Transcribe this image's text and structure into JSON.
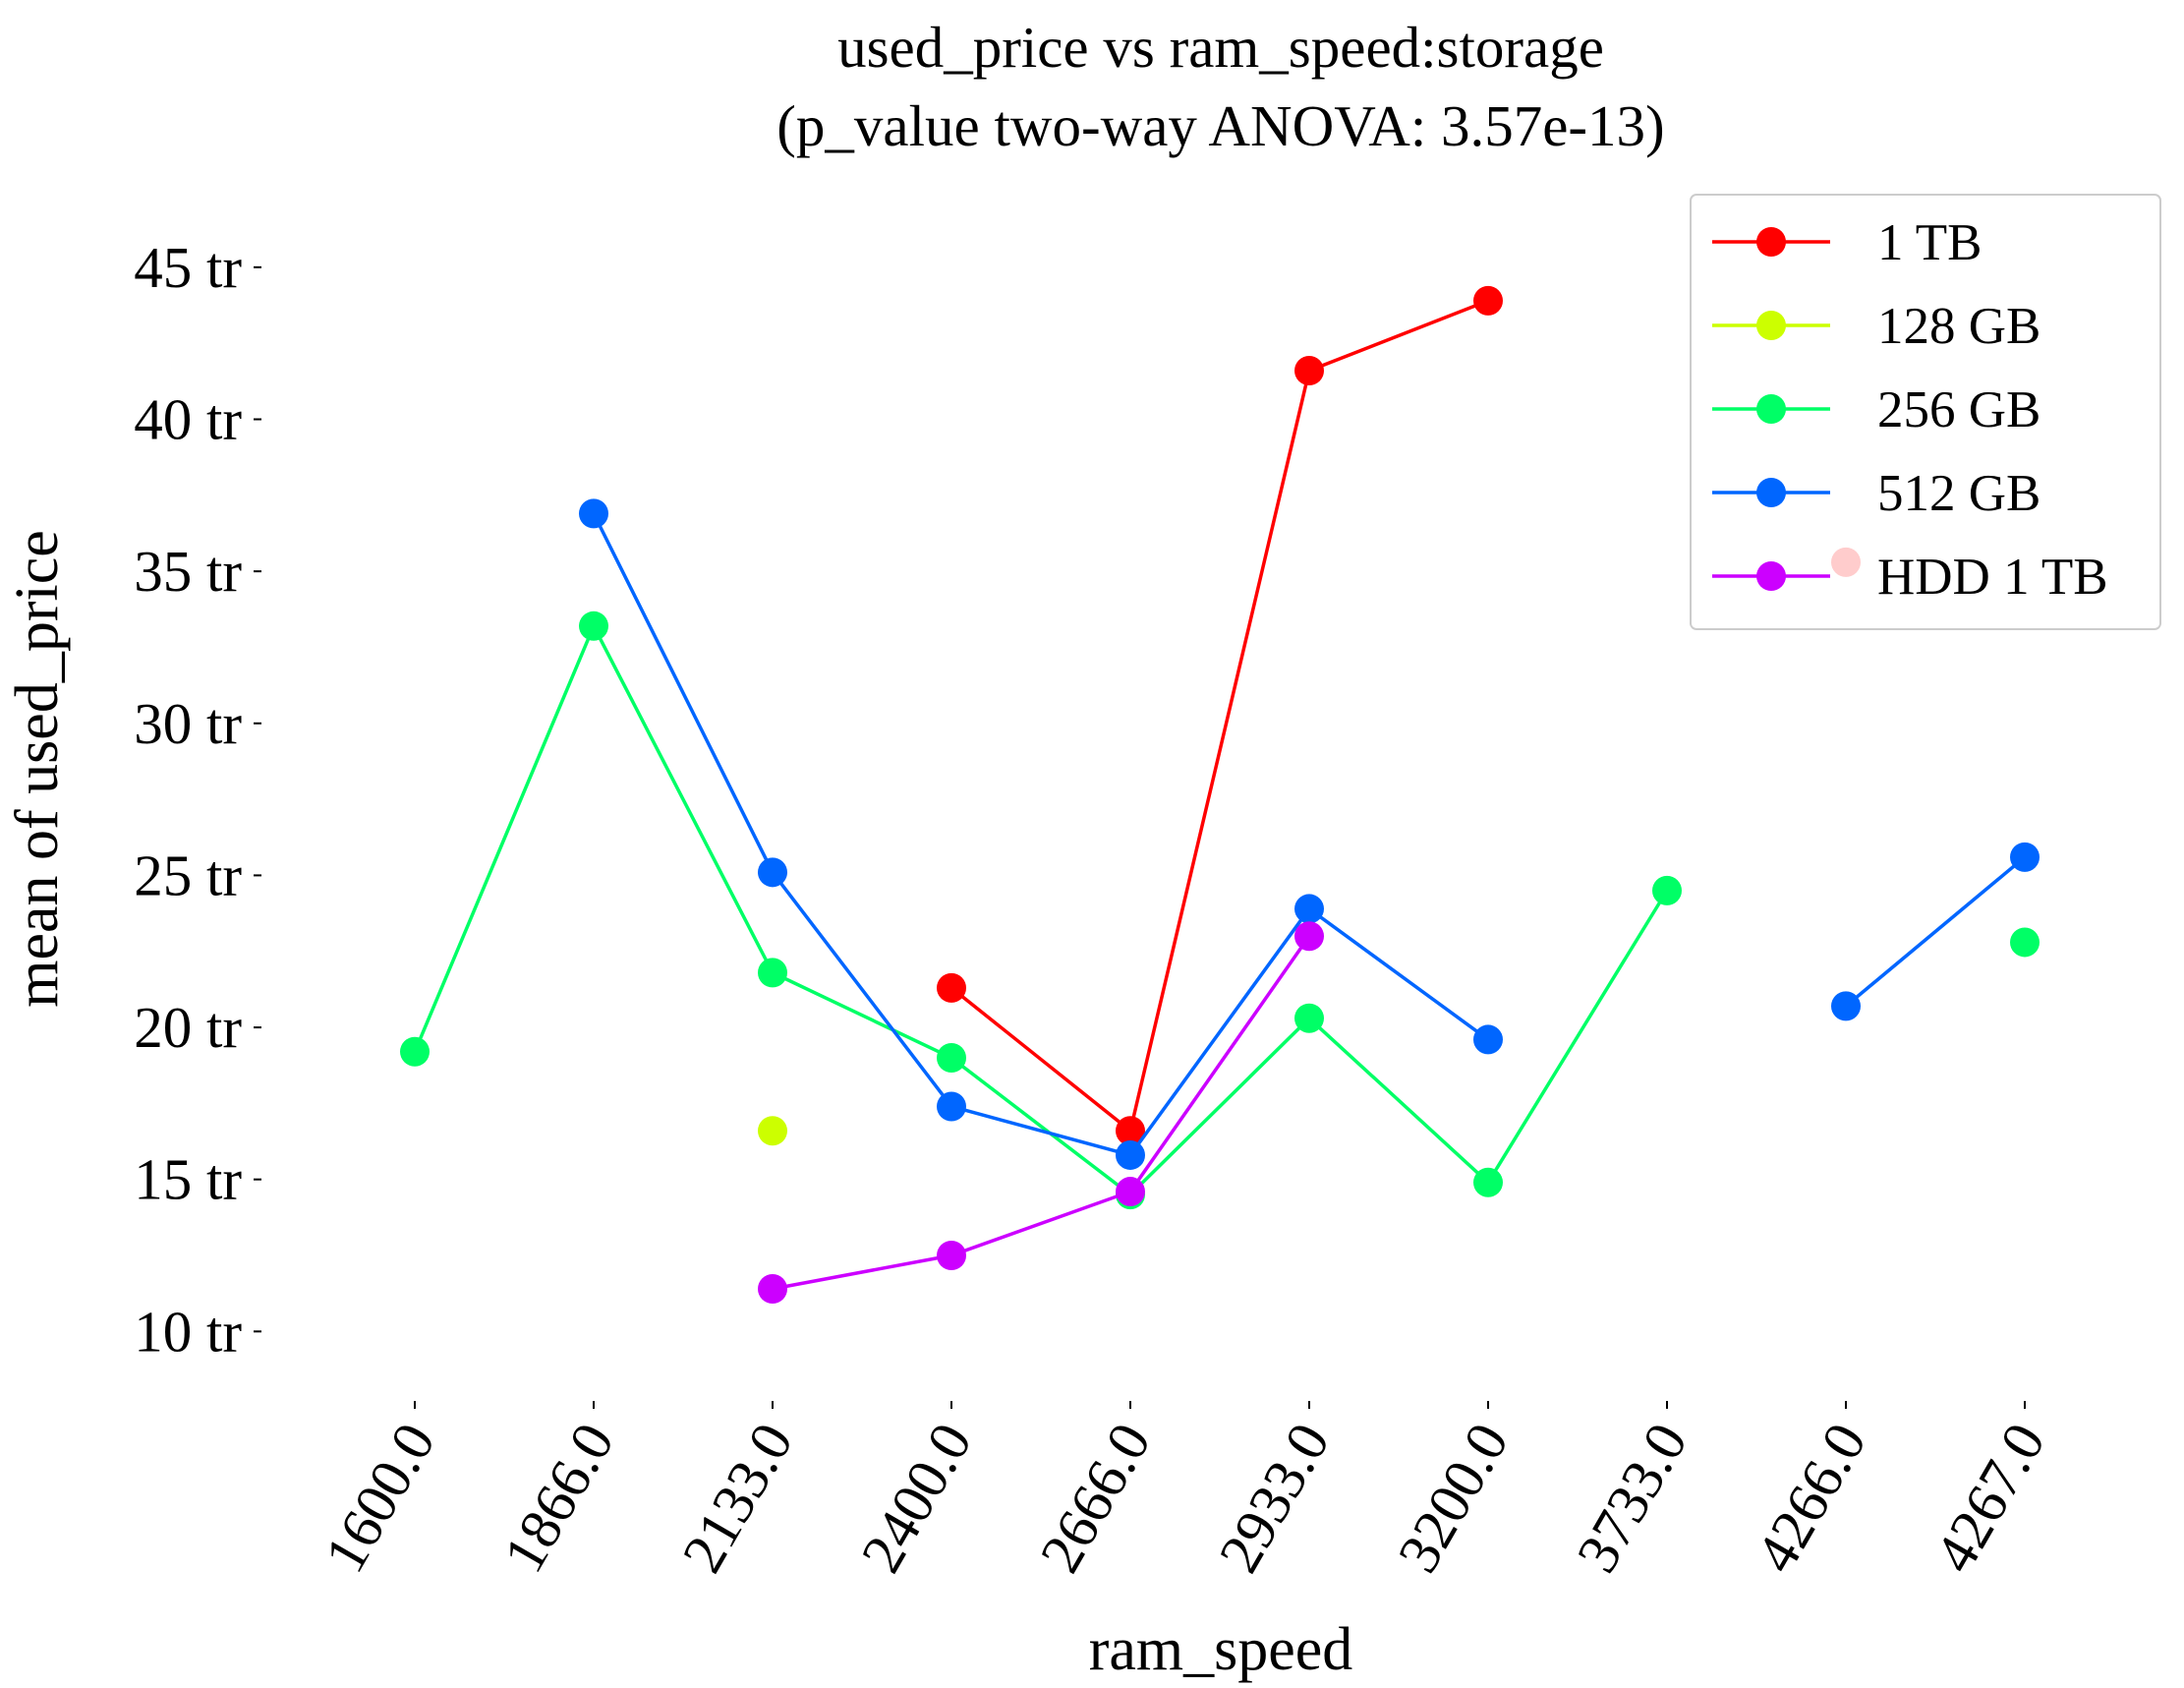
{
  "chart_data": {
    "type": "line",
    "title": "used_price vs ram_speed:storage",
    "subtitle": "(p_value two-way ANOVA: 3.57e-13)",
    "xlabel": "ram_speed",
    "ylabel": "mean of used_price",
    "categories": [
      "1600.0",
      "1866.0",
      "2133.0",
      "2400.0",
      "2666.0",
      "2933.0",
      "3200.0",
      "3733.0",
      "4266.0",
      "4267.0"
    ],
    "ylim": [
      8.2,
      47
    ],
    "yticks": [
      10,
      15,
      20,
      25,
      30,
      35,
      40,
      45
    ],
    "ytick_labels": [
      "10 tr",
      "15 tr",
      "20 tr",
      "25 tr",
      "30 tr",
      "35 tr",
      "40 tr",
      "45 tr"
    ],
    "legend_position": "top-right",
    "grid": false,
    "series": [
      {
        "name": "1 TB",
        "color": "#ff0000",
        "values": [
          null,
          null,
          null,
          21.3,
          16.6,
          41.6,
          43.9,
          null,
          35.3,
          null
        ]
      },
      {
        "name": "128 GB",
        "color": "#ccff00",
        "values": [
          null,
          null,
          16.6,
          null,
          null,
          null,
          null,
          null,
          null,
          null
        ]
      },
      {
        "name": "256 GB",
        "color": "#00ff66",
        "values": [
          19.2,
          33.2,
          21.8,
          19.0,
          14.5,
          20.3,
          14.9,
          24.5,
          null,
          22.8
        ]
      },
      {
        "name": "512 GB",
        "color": "#0066ff",
        "values": [
          null,
          36.9,
          25.1,
          17.4,
          15.8,
          23.9,
          19.6,
          null,
          20.7,
          25.6
        ]
      },
      {
        "name": "HDD 1 TB",
        "color": "#cc00ff",
        "values": [
          null,
          null,
          11.4,
          12.5,
          14.6,
          23.0,
          null,
          null,
          null,
          null
        ]
      }
    ]
  }
}
